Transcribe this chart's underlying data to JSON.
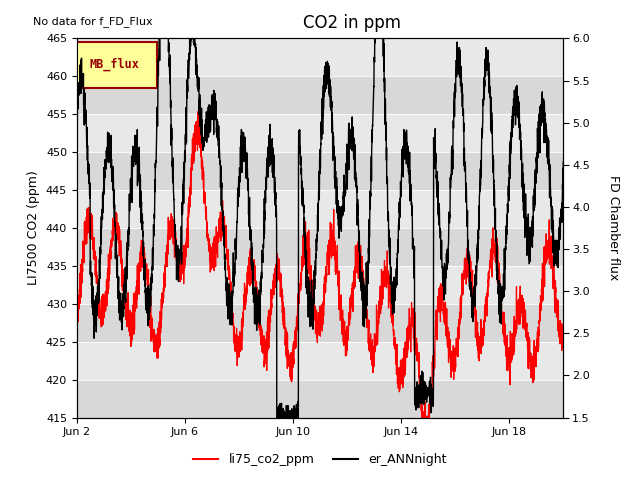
{
  "title": "CO2 in ppm",
  "top_left_text": "No data for f_FD_Flux",
  "ylabel_left": "LI7500 CO2 (ppm)",
  "ylabel_right": "FD Chamber flux",
  "ylim_left": [
    415,
    465
  ],
  "ylim_right": [
    1.5,
    6.0
  ],
  "xlim": [
    0,
    18
  ],
  "xtick_positions": [
    0,
    4,
    8,
    12,
    16
  ],
  "xtick_labels": [
    "Jun 2",
    "Jun 6",
    "Jun 10",
    "Jun 14",
    "Jun 18"
  ],
  "yticks_left": [
    415,
    420,
    425,
    430,
    435,
    440,
    445,
    450,
    455,
    460,
    465
  ],
  "yticks_right": [
    1.5,
    2.0,
    2.5,
    3.0,
    3.5,
    4.0,
    4.5,
    5.0,
    5.5,
    6.0
  ],
  "legend_box_text": "MB_flux",
  "legend_box_bg": "#ffff99",
  "legend_box_border": "#990000",
  "bg_color": "#e0e0e0",
  "line_red_color": "#ff0000",
  "line_black_color": "#000000",
  "legend_label_red": "li75_co2_ppm",
  "legend_label_black": "er_ANNnight",
  "title_fontsize": 12,
  "axis_label_fontsize": 9,
  "tick_fontsize": 8,
  "figsize": [
    6.4,
    4.8
  ],
  "dpi": 100
}
